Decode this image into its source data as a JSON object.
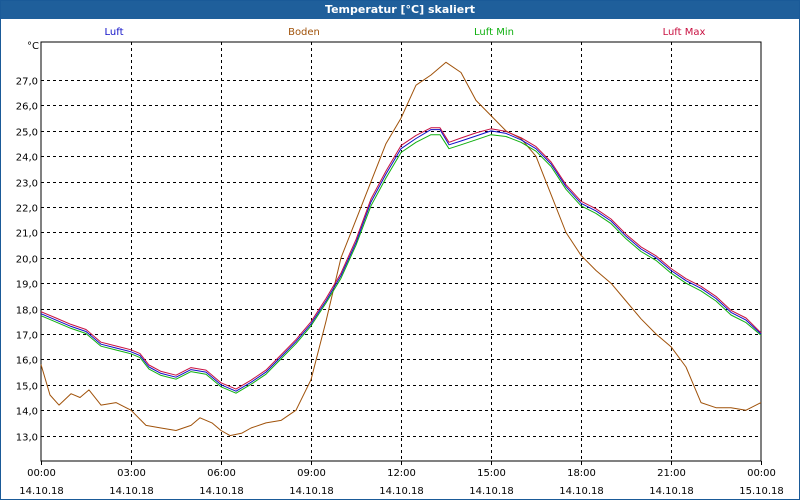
{
  "chart_data": {
    "type": "line",
    "title": "Temperatur [°C] skaliert",
    "ylabel": "°C",
    "xlabel": "",
    "ylim": [
      12.0,
      28.5
    ],
    "yticks": [
      13.0,
      14.0,
      15.0,
      16.0,
      17.0,
      18.0,
      19.0,
      20.0,
      21.0,
      22.0,
      23.0,
      24.0,
      25.0,
      26.0,
      27.0
    ],
    "ytick_labels": [
      "13,0",
      "14,0",
      "15,0",
      "16,0",
      "17,0",
      "18,0",
      "19,0",
      "20,0",
      "21,0",
      "22,0",
      "23,0",
      "24,0",
      "25,0",
      "26,0",
      "27,0"
    ],
    "x_range": [
      "14.10.18 00:00",
      "15.10.18 00:00"
    ],
    "x_ticks": [
      {
        "x": 0,
        "time": "00:00",
        "date": "14.10.18"
      },
      {
        "x": 3,
        "time": "03:00",
        "date": "14.10.18"
      },
      {
        "x": 6,
        "time": "06:00",
        "date": "14.10.18"
      },
      {
        "x": 9,
        "time": "09:00",
        "date": "14.10.18"
      },
      {
        "x": 12,
        "time": "12:00",
        "date": "14.10.18"
      },
      {
        "x": 15,
        "time": "15:00",
        "date": "14.10.18"
      },
      {
        "x": 18,
        "time": "18:00",
        "date": "14.10.18"
      },
      {
        "x": 21,
        "time": "21:00",
        "date": "14.10.18"
      },
      {
        "x": 24,
        "time": "00:00",
        "date": "15.10.18"
      }
    ],
    "grid": true,
    "legend_position": "top",
    "series": [
      {
        "name": "Luft",
        "color": "#1010c8",
        "points": [
          [
            0,
            17.8
          ],
          [
            0.5,
            17.55
          ],
          [
            1,
            17.3
          ],
          [
            1.5,
            17.1
          ],
          [
            2,
            16.6
          ],
          [
            2.5,
            16.45
          ],
          [
            3,
            16.3
          ],
          [
            3.3,
            16.15
          ],
          [
            3.6,
            15.7
          ],
          [
            4,
            15.45
          ],
          [
            4.5,
            15.3
          ],
          [
            5,
            15.6
          ],
          [
            5.5,
            15.5
          ],
          [
            6,
            15.0
          ],
          [
            6.5,
            14.75
          ],
          [
            7,
            15.1
          ],
          [
            7.5,
            15.5
          ],
          [
            8,
            16.1
          ],
          [
            8.5,
            16.7
          ],
          [
            9,
            17.4
          ],
          [
            9.5,
            18.3
          ],
          [
            10,
            19.3
          ],
          [
            10.5,
            20.6
          ],
          [
            11,
            22.2
          ],
          [
            11.5,
            23.3
          ],
          [
            12,
            24.3
          ],
          [
            12.5,
            24.7
          ],
          [
            13,
            25.05
          ],
          [
            13.3,
            25.05
          ],
          [
            13.6,
            24.45
          ],
          [
            14,
            24.6
          ],
          [
            14.5,
            24.8
          ],
          [
            15,
            25.0
          ],
          [
            15.5,
            24.9
          ],
          [
            16,
            24.65
          ],
          [
            16.5,
            24.3
          ],
          [
            17,
            23.7
          ],
          [
            17.5,
            22.8
          ],
          [
            18,
            22.15
          ],
          [
            18.5,
            21.85
          ],
          [
            19,
            21.45
          ],
          [
            19.5,
            20.85
          ],
          [
            20,
            20.35
          ],
          [
            20.5,
            20.0
          ],
          [
            21,
            19.5
          ],
          [
            21.5,
            19.1
          ],
          [
            22,
            18.8
          ],
          [
            22.5,
            18.4
          ],
          [
            23,
            17.85
          ],
          [
            23.5,
            17.55
          ],
          [
            24,
            17.0
          ]
        ]
      },
      {
        "name": "Boden",
        "color": "#a0520a",
        "points": [
          [
            0,
            15.8
          ],
          [
            0.3,
            14.6
          ],
          [
            0.6,
            14.2
          ],
          [
            1,
            14.65
          ],
          [
            1.3,
            14.5
          ],
          [
            1.6,
            14.8
          ],
          [
            2,
            14.2
          ],
          [
            2.5,
            14.3
          ],
          [
            3,
            14.0
          ],
          [
            3.5,
            13.4
          ],
          [
            4,
            13.3
          ],
          [
            4.5,
            13.2
          ],
          [
            5,
            13.4
          ],
          [
            5.3,
            13.7
          ],
          [
            5.7,
            13.5
          ],
          [
            6,
            13.2
          ],
          [
            6.3,
            13.0
          ],
          [
            6.7,
            13.1
          ],
          [
            7,
            13.3
          ],
          [
            7.5,
            13.5
          ],
          [
            8,
            13.6
          ],
          [
            8.5,
            14.0
          ],
          [
            9,
            15.2
          ],
          [
            9.5,
            17.5
          ],
          [
            10,
            20.0
          ],
          [
            10.5,
            21.5
          ],
          [
            11,
            23.0
          ],
          [
            11.5,
            24.5
          ],
          [
            12,
            25.5
          ],
          [
            12.5,
            26.8
          ],
          [
            13,
            27.2
          ],
          [
            13.5,
            27.7
          ],
          [
            14,
            27.3
          ],
          [
            14.5,
            26.2
          ],
          [
            15,
            25.6
          ],
          [
            15.5,
            25.0
          ],
          [
            16,
            24.7
          ],
          [
            16.5,
            24.0
          ],
          [
            17,
            22.5
          ],
          [
            17.5,
            21.0
          ],
          [
            18,
            20.1
          ],
          [
            18.5,
            19.5
          ],
          [
            19,
            19.0
          ],
          [
            19.5,
            18.3
          ],
          [
            20,
            17.6
          ],
          [
            20.5,
            17.0
          ],
          [
            21,
            16.5
          ],
          [
            21.5,
            15.7
          ],
          [
            22,
            14.3
          ],
          [
            22.5,
            14.1
          ],
          [
            23,
            14.1
          ],
          [
            23.5,
            14.0
          ],
          [
            24,
            14.3
          ]
        ]
      },
      {
        "name": "Luft Min",
        "color": "#10b010",
        "points": [
          [
            0,
            17.72
          ],
          [
            0.5,
            17.47
          ],
          [
            1,
            17.22
          ],
          [
            1.5,
            17.02
          ],
          [
            2,
            16.52
          ],
          [
            2.5,
            16.37
          ],
          [
            3,
            16.22
          ],
          [
            3.3,
            16.07
          ],
          [
            3.6,
            15.62
          ],
          [
            4,
            15.37
          ],
          [
            4.5,
            15.22
          ],
          [
            5,
            15.52
          ],
          [
            5.5,
            15.42
          ],
          [
            6,
            14.92
          ],
          [
            6.5,
            14.67
          ],
          [
            7,
            15.02
          ],
          [
            7.5,
            15.42
          ],
          [
            8,
            16.02
          ],
          [
            8.5,
            16.62
          ],
          [
            9,
            17.32
          ],
          [
            9.5,
            18.22
          ],
          [
            10,
            19.2
          ],
          [
            10.5,
            20.5
          ],
          [
            11,
            22.05
          ],
          [
            11.5,
            23.15
          ],
          [
            12,
            24.15
          ],
          [
            12.5,
            24.55
          ],
          [
            13,
            24.85
          ],
          [
            13.3,
            24.85
          ],
          [
            13.6,
            24.3
          ],
          [
            14,
            24.45
          ],
          [
            14.5,
            24.65
          ],
          [
            15,
            24.85
          ],
          [
            15.5,
            24.78
          ],
          [
            16,
            24.55
          ],
          [
            16.5,
            24.2
          ],
          [
            17,
            23.6
          ],
          [
            17.5,
            22.7
          ],
          [
            18,
            22.05
          ],
          [
            18.5,
            21.75
          ],
          [
            19,
            21.35
          ],
          [
            19.5,
            20.75
          ],
          [
            20,
            20.25
          ],
          [
            20.5,
            19.9
          ],
          [
            21,
            19.4
          ],
          [
            21.5,
            19.0
          ],
          [
            22,
            18.7
          ],
          [
            22.5,
            18.3
          ],
          [
            23,
            17.75
          ],
          [
            23.5,
            17.45
          ],
          [
            24,
            16.95
          ]
        ]
      },
      {
        "name": "Luft Max",
        "color": "#c81040",
        "points": [
          [
            0,
            17.88
          ],
          [
            0.5,
            17.63
          ],
          [
            1,
            17.38
          ],
          [
            1.5,
            17.18
          ],
          [
            2,
            16.68
          ],
          [
            2.5,
            16.53
          ],
          [
            3,
            16.38
          ],
          [
            3.3,
            16.23
          ],
          [
            3.6,
            15.78
          ],
          [
            4,
            15.53
          ],
          [
            4.5,
            15.38
          ],
          [
            5,
            15.68
          ],
          [
            5.5,
            15.58
          ],
          [
            6,
            15.08
          ],
          [
            6.5,
            14.83
          ],
          [
            7,
            15.18
          ],
          [
            7.5,
            15.58
          ],
          [
            8,
            16.18
          ],
          [
            8.5,
            16.78
          ],
          [
            9,
            17.48
          ],
          [
            9.5,
            18.4
          ],
          [
            10,
            19.4
          ],
          [
            10.5,
            20.72
          ],
          [
            11,
            22.32
          ],
          [
            11.5,
            23.42
          ],
          [
            12,
            24.42
          ],
          [
            12.5,
            24.82
          ],
          [
            13,
            25.12
          ],
          [
            13.3,
            25.12
          ],
          [
            13.6,
            24.55
          ],
          [
            14,
            24.72
          ],
          [
            14.5,
            24.92
          ],
          [
            15,
            25.08
          ],
          [
            15.5,
            24.98
          ],
          [
            16,
            24.73
          ],
          [
            16.5,
            24.38
          ],
          [
            17,
            23.78
          ],
          [
            17.5,
            22.88
          ],
          [
            18,
            22.23
          ],
          [
            18.5,
            21.93
          ],
          [
            19,
            21.53
          ],
          [
            19.5,
            20.93
          ],
          [
            20,
            20.43
          ],
          [
            20.5,
            20.08
          ],
          [
            21,
            19.58
          ],
          [
            21.5,
            19.18
          ],
          [
            22,
            18.88
          ],
          [
            22.5,
            18.48
          ],
          [
            23,
            17.93
          ],
          [
            23.5,
            17.63
          ],
          [
            24,
            17.05
          ]
        ]
      }
    ]
  }
}
